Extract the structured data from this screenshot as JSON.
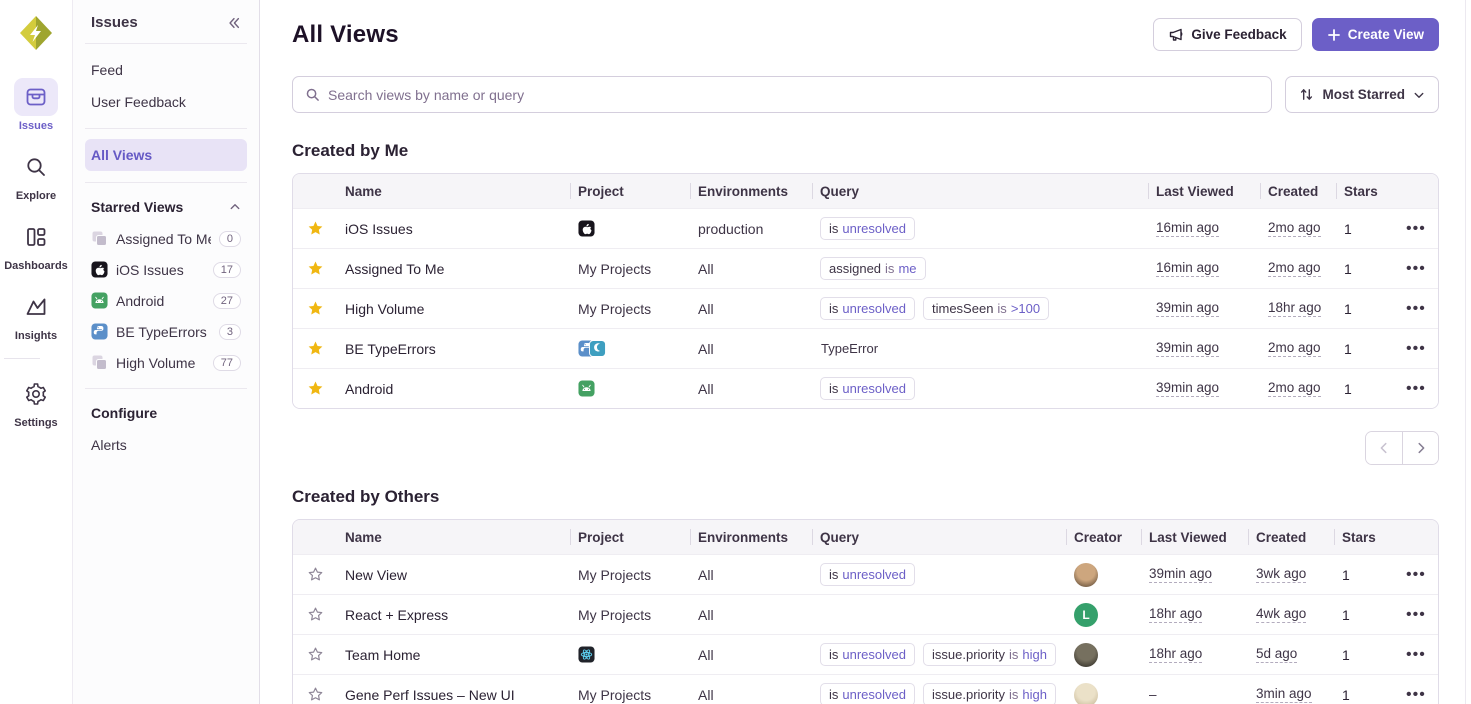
{
  "colors": {
    "accent": "#6C5FC7",
    "accent_light_bg": "#ECE8F9",
    "star_yellow": "#F0B712",
    "active_item_bg": "#E8E3F6",
    "active_item_text": "#6559C5"
  },
  "rail": {
    "items": [
      {
        "label": "Issues",
        "icon": "issues-icon",
        "active": true
      },
      {
        "label": "Explore",
        "icon": "explore-icon",
        "active": false
      },
      {
        "label": "Dashboards",
        "icon": "dashboards-icon",
        "active": false
      },
      {
        "label": "Insights",
        "icon": "insights-icon",
        "active": false,
        "divider_after": true
      },
      {
        "label": "Settings",
        "icon": "settings-icon",
        "active": false
      }
    ]
  },
  "sidebar": {
    "title": "Issues",
    "primary_items": [
      {
        "label": "Feed"
      },
      {
        "label": "User Feedback"
      }
    ],
    "views_item": {
      "label": "All Views",
      "active": true
    },
    "starred": {
      "title": "Starred Views",
      "items": [
        {
          "icon": "layers-icon",
          "label": "Assigned To Me",
          "count": "0"
        },
        {
          "icon": "apple-icon",
          "label": "iOS Issues",
          "count": "17"
        },
        {
          "icon": "android-icon",
          "label": "Android",
          "count": "27"
        },
        {
          "icon": "python-icon",
          "label": "BE TypeErrors",
          "count": "3"
        },
        {
          "icon": "layers-icon",
          "label": "High Volume",
          "count": "77"
        }
      ]
    },
    "configure": {
      "title": "Configure",
      "items": [
        {
          "label": "Alerts"
        }
      ]
    }
  },
  "header": {
    "title": "All Views",
    "feedback_button": "Give Feedback",
    "create_button": "Create View"
  },
  "toolbar": {
    "search_placeholder": "Search views by name or query",
    "sort_label": "Most Starred"
  },
  "created_by_me": {
    "title": "Created by Me",
    "columns": [
      "Name",
      "Project",
      "Environments",
      "Query",
      "Last Viewed",
      "Created",
      "Stars"
    ],
    "rows": [
      {
        "starred": true,
        "name": "iOS Issues",
        "project": {
          "icons": [
            "apple"
          ]
        },
        "environments": "production",
        "query": [
          {
            "chip": true,
            "parts": [
              [
                "is",
                "k"
              ],
              [
                "unresolved",
                "v"
              ]
            ]
          }
        ],
        "last_viewed": "16min ago",
        "created": "2mo ago",
        "stars": "1"
      },
      {
        "starred": true,
        "name": "Assigned To Me",
        "project": {
          "text": "My Projects"
        },
        "environments": "All",
        "query": [
          {
            "chip": true,
            "parts": [
              [
                "assigned",
                "k"
              ],
              [
                "is",
                "o"
              ],
              [
                "me",
                "v"
              ]
            ]
          }
        ],
        "last_viewed": "16min ago",
        "created": "2mo ago",
        "stars": "1"
      },
      {
        "starred": true,
        "name": "High Volume",
        "project": {
          "text": "My Projects"
        },
        "environments": "All",
        "query": [
          {
            "chip": true,
            "parts": [
              [
                "is",
                "k"
              ],
              [
                "unresolved",
                "v"
              ]
            ]
          },
          {
            "chip": true,
            "parts": [
              [
                "timesSeen",
                "k"
              ],
              [
                "is",
                "o"
              ],
              [
                ">100",
                "v"
              ]
            ]
          }
        ],
        "last_viewed": "39min ago",
        "created": "18hr ago",
        "stars": "1"
      },
      {
        "starred": true,
        "name": "BE TypeErrors",
        "project": {
          "icons": [
            "python",
            "teal"
          ]
        },
        "environments": "All",
        "query": [
          {
            "chip": false,
            "parts": [
              [
                "TypeError",
                "k"
              ]
            ]
          }
        ],
        "last_viewed": "39min ago",
        "created": "2mo ago",
        "stars": "1"
      },
      {
        "starred": true,
        "name": "Android",
        "project": {
          "icons": [
            "android"
          ]
        },
        "environments": "All",
        "query": [
          {
            "chip": true,
            "parts": [
              [
                "is",
                "k"
              ],
              [
                "unresolved",
                "v"
              ]
            ]
          }
        ],
        "last_viewed": "39min ago",
        "created": "2mo ago",
        "stars": "1"
      }
    ]
  },
  "created_by_others": {
    "title": "Created by Others",
    "columns": [
      "Name",
      "Project",
      "Environments",
      "Query",
      "Creator",
      "Last Viewed",
      "Created",
      "Stars"
    ],
    "rows": [
      {
        "starred": false,
        "name": "New View",
        "project": {
          "text": "My Projects"
        },
        "environments": "All",
        "query": [
          {
            "chip": true,
            "parts": [
              [
                "is",
                "k"
              ],
              [
                "unresolved",
                "v"
              ]
            ]
          }
        ],
        "creator": {
          "kind": "photo",
          "colors": [
            "#cda67e",
            "#4a3a2a"
          ]
        },
        "last_viewed": "39min ago",
        "created": "3wk ago",
        "stars": "1"
      },
      {
        "starred": false,
        "name": "React + Express",
        "project": {
          "text": "My Projects"
        },
        "environments": "All",
        "query": [],
        "creator": {
          "kind": "letter",
          "letter": "L",
          "bg": "#35A06B"
        },
        "last_viewed": "18hr ago",
        "created": "4wk ago",
        "stars": "1"
      },
      {
        "starred": false,
        "name": "Team Home",
        "project": {
          "icons": [
            "react"
          ]
        },
        "environments": "All",
        "query": [
          {
            "chip": true,
            "parts": [
              [
                "is",
                "k"
              ],
              [
                "unresolved",
                "v"
              ]
            ]
          },
          {
            "chip": true,
            "parts": [
              [
                "issue.priority",
                "k"
              ],
              [
                "is",
                "o"
              ],
              [
                "high",
                "v"
              ]
            ]
          }
        ],
        "creator": {
          "kind": "photo",
          "colors": [
            "#76705f",
            "#23201b"
          ]
        },
        "last_viewed": "18hr ago",
        "created": "5d ago",
        "stars": "1"
      },
      {
        "starred": false,
        "name": "Gene Perf Issues – New UI",
        "project": {
          "text": "My Projects"
        },
        "environments": "All",
        "query": [
          {
            "chip": true,
            "parts": [
              [
                "is",
                "k"
              ],
              [
                "unresolved",
                "v"
              ]
            ]
          },
          {
            "chip": true,
            "parts": [
              [
                "issue.priority",
                "k"
              ],
              [
                "is",
                "o"
              ],
              [
                "high",
                "v"
              ]
            ]
          }
        ],
        "creator": {
          "kind": "photo",
          "colors": [
            "#ebe1c8",
            "#c0b08e"
          ]
        },
        "last_viewed": "–",
        "created": "3min ago",
        "stars": "1"
      }
    ]
  }
}
